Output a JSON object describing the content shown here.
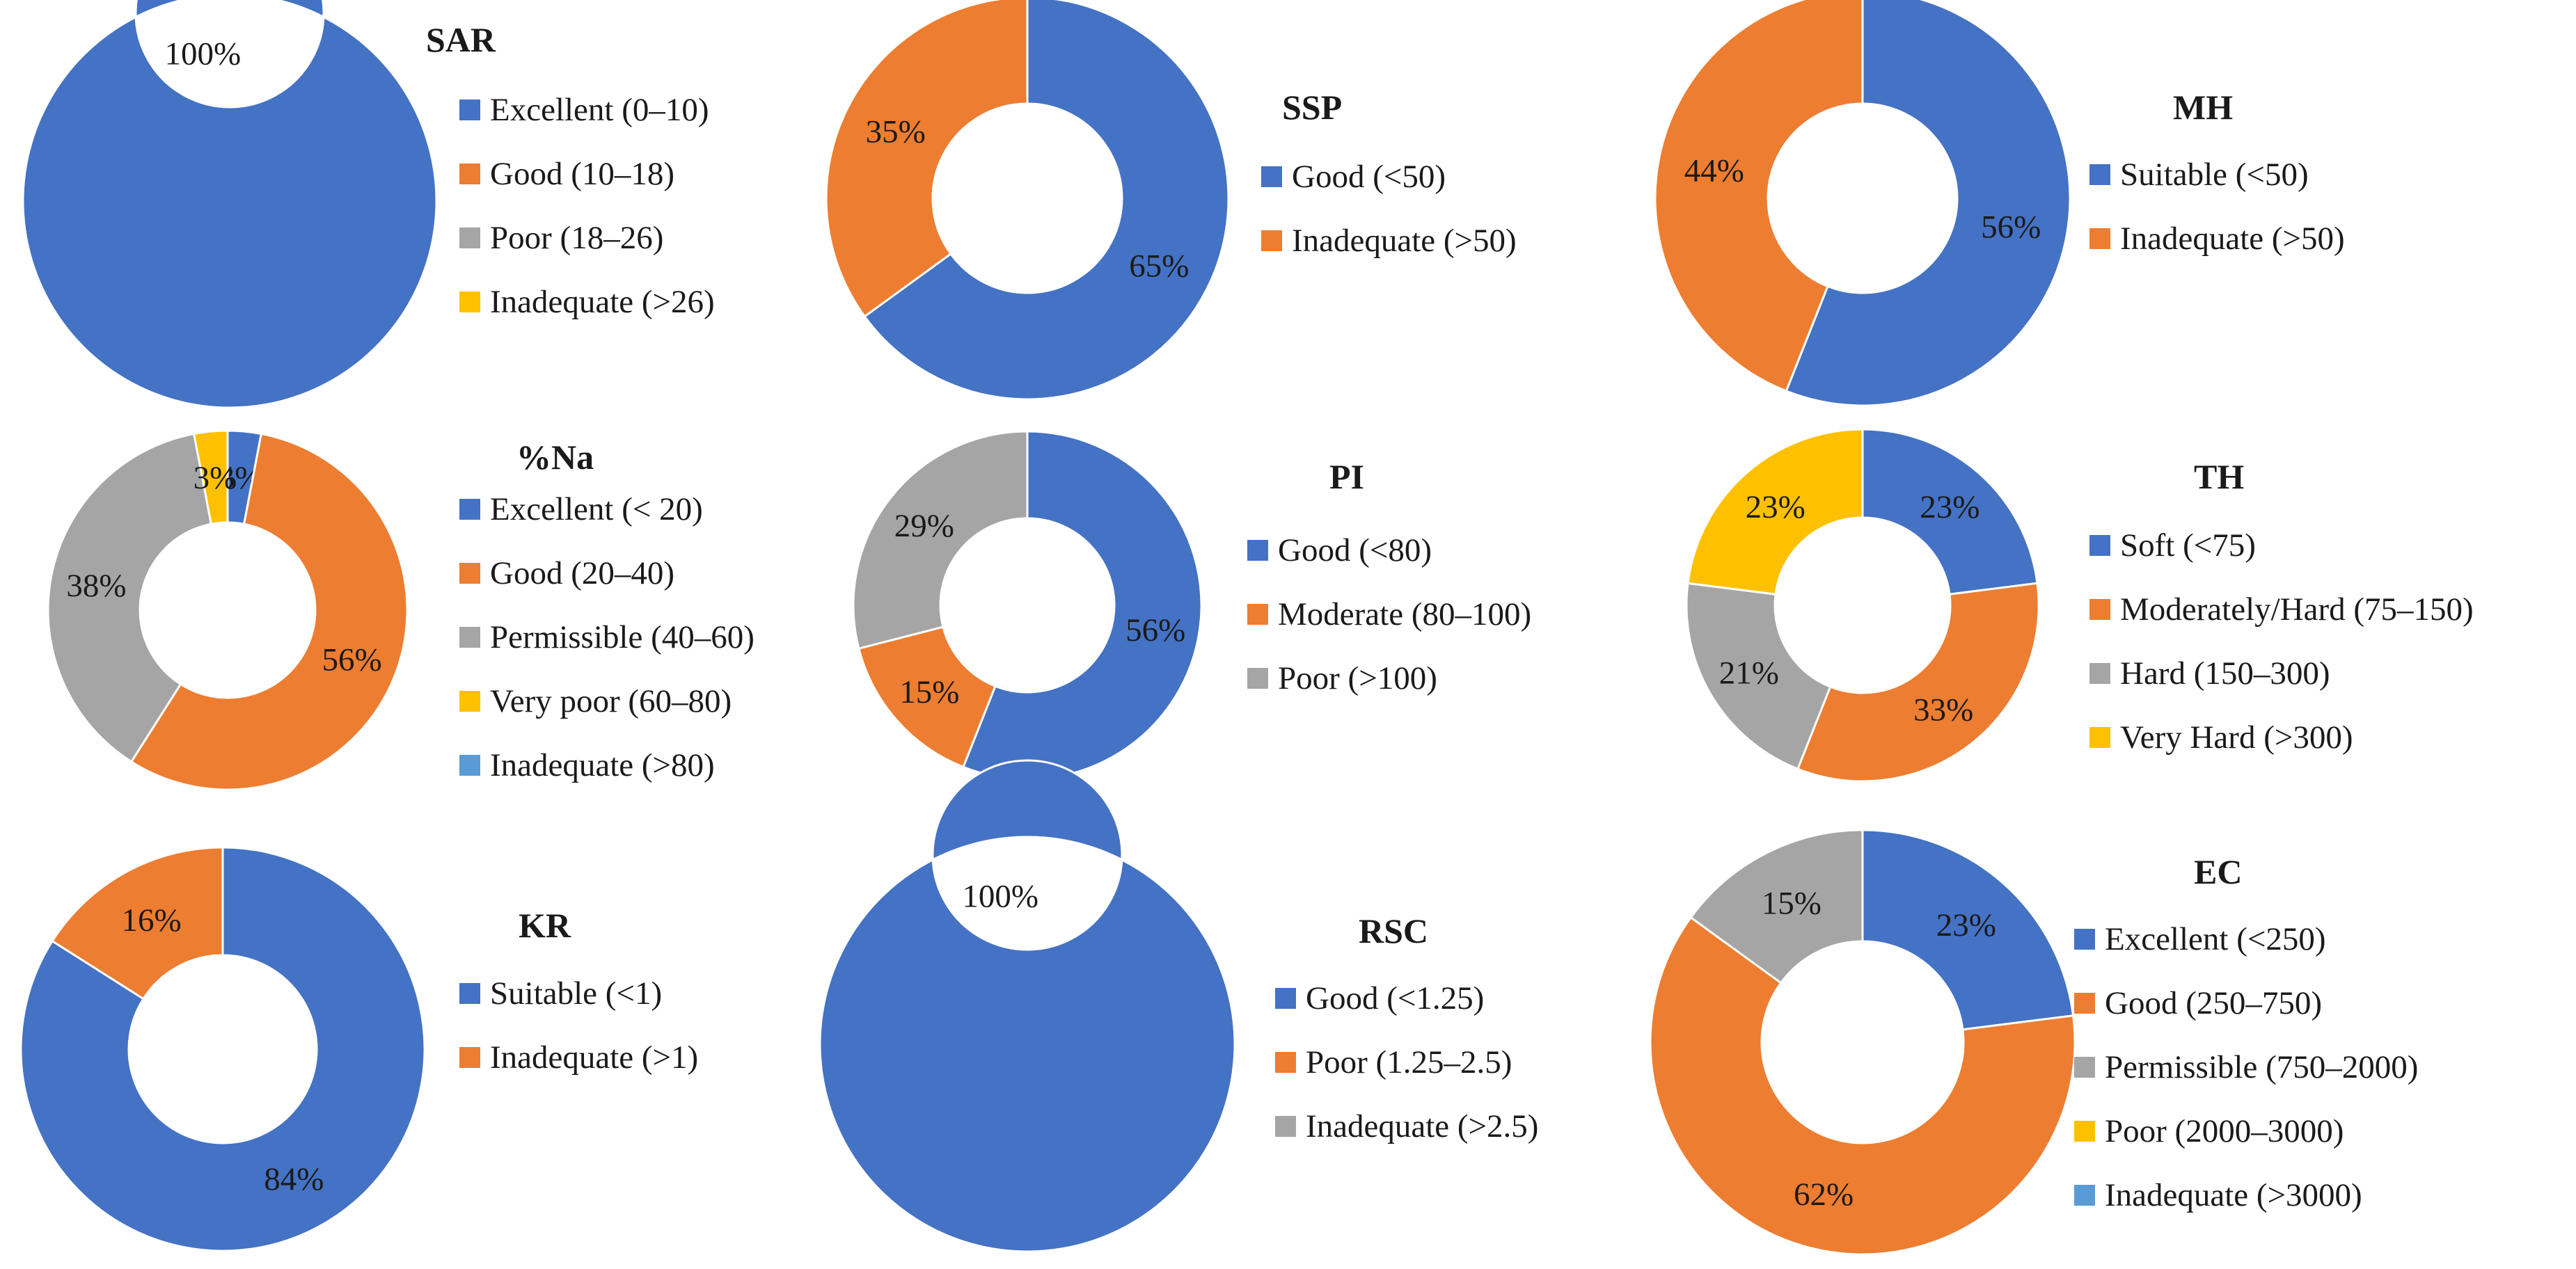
{
  "colors": {
    "blue": "#4472c4",
    "orange": "#ed7d31",
    "gray": "#a5a5a5",
    "yellow": "#ffc000",
    "lightblue": "#5b9bd5"
  },
  "chart_data": [
    {
      "id": "sar",
      "type": "pie",
      "donut": true,
      "title": "SAR",
      "categories": [
        "Excellent (0–10)",
        "Good (10–18)",
        "Poor (18–26)",
        "Inadequate (>26)"
      ],
      "values": [
        100,
        0,
        0,
        0
      ],
      "labels": [
        "100%",
        "",
        "",
        ""
      ],
      "colors": [
        "#4472c4",
        "#ed7d31",
        "#a5a5a5",
        "#ffc000"
      ]
    },
    {
      "id": "ssp",
      "type": "pie",
      "donut": true,
      "title": "SSP",
      "categories": [
        "Good (<50)",
        "Inadequate (>50)"
      ],
      "values": [
        65,
        35
      ],
      "labels": [
        "65%",
        "35%"
      ],
      "colors": [
        "#4472c4",
        "#ed7d31"
      ]
    },
    {
      "id": "mh",
      "type": "pie",
      "donut": true,
      "title": "MH",
      "categories": [
        "Suitable (<50)",
        "Inadequate (>50)"
      ],
      "values": [
        56,
        44
      ],
      "labels": [
        "56%",
        "44%"
      ],
      "colors": [
        "#4472c4",
        "#ed7d31"
      ]
    },
    {
      "id": "na",
      "type": "pie",
      "donut": true,
      "title": "%Na",
      "categories": [
        "Excellent (< 20)",
        "Good (20–40)",
        "Permissible (40–60)",
        "Very poor (60–80)",
        "Inadequate (>80)"
      ],
      "values": [
        3,
        56,
        38,
        3,
        0
      ],
      "labels": [
        "3%",
        "56%",
        "38%",
        "3%",
        ""
      ],
      "colors": [
        "#4472c4",
        "#ed7d31",
        "#a5a5a5",
        "#ffc000",
        "#5b9bd5"
      ]
    },
    {
      "id": "pi",
      "type": "pie",
      "donut": true,
      "title": "PI",
      "categories": [
        "Good (<80)",
        "Moderate (80–100)",
        "Poor (>100)"
      ],
      "values": [
        56,
        15,
        29
      ],
      "labels": [
        "56%",
        "15%",
        "29%"
      ],
      "colors": [
        "#4472c4",
        "#ed7d31",
        "#a5a5a5"
      ]
    },
    {
      "id": "th",
      "type": "pie",
      "donut": true,
      "title": "TH",
      "categories": [
        "Soft (<75)",
        "Moderately/Hard (75–150)",
        "Hard (150–300)",
        "Very Hard (>300)"
      ],
      "values": [
        23,
        33,
        21,
        23
      ],
      "labels": [
        "23%",
        "33%",
        "21%",
        "23%"
      ],
      "colors": [
        "#4472c4",
        "#ed7d31",
        "#a5a5a5",
        "#ffc000"
      ]
    },
    {
      "id": "kr",
      "type": "pie",
      "donut": true,
      "title": "KR",
      "categories": [
        "Suitable (<1)",
        "Inadequate (>1)"
      ],
      "values": [
        84,
        16
      ],
      "labels": [
        "84%",
        "16%"
      ],
      "colors": [
        "#4472c4",
        "#ed7d31"
      ]
    },
    {
      "id": "rsc",
      "type": "pie",
      "donut": true,
      "title": "RSC",
      "categories": [
        "Good (<1.25)",
        "Poor (1.25–2.5)",
        "Inadequate (>2.5)"
      ],
      "values": [
        100,
        0,
        0
      ],
      "labels": [
        "100%",
        "",
        ""
      ],
      "colors": [
        "#4472c4",
        "#ed7d31",
        "#a5a5a5"
      ]
    },
    {
      "id": "ec",
      "type": "pie",
      "donut": true,
      "title": "EC",
      "categories": [
        "Excellent (<250)",
        "Good (250–750)",
        "Permissible (750–2000)",
        "Poor (2000–3000)",
        "Inadequate (>3000)"
      ],
      "values": [
        23,
        62,
        15,
        0,
        0
      ],
      "labels": [
        "23%",
        "62%",
        "15%",
        "",
        ""
      ],
      "colors": [
        "#4472c4",
        "#ed7d31",
        "#a5a5a5",
        "#ffc000",
        "#5b9bd5"
      ]
    }
  ]
}
